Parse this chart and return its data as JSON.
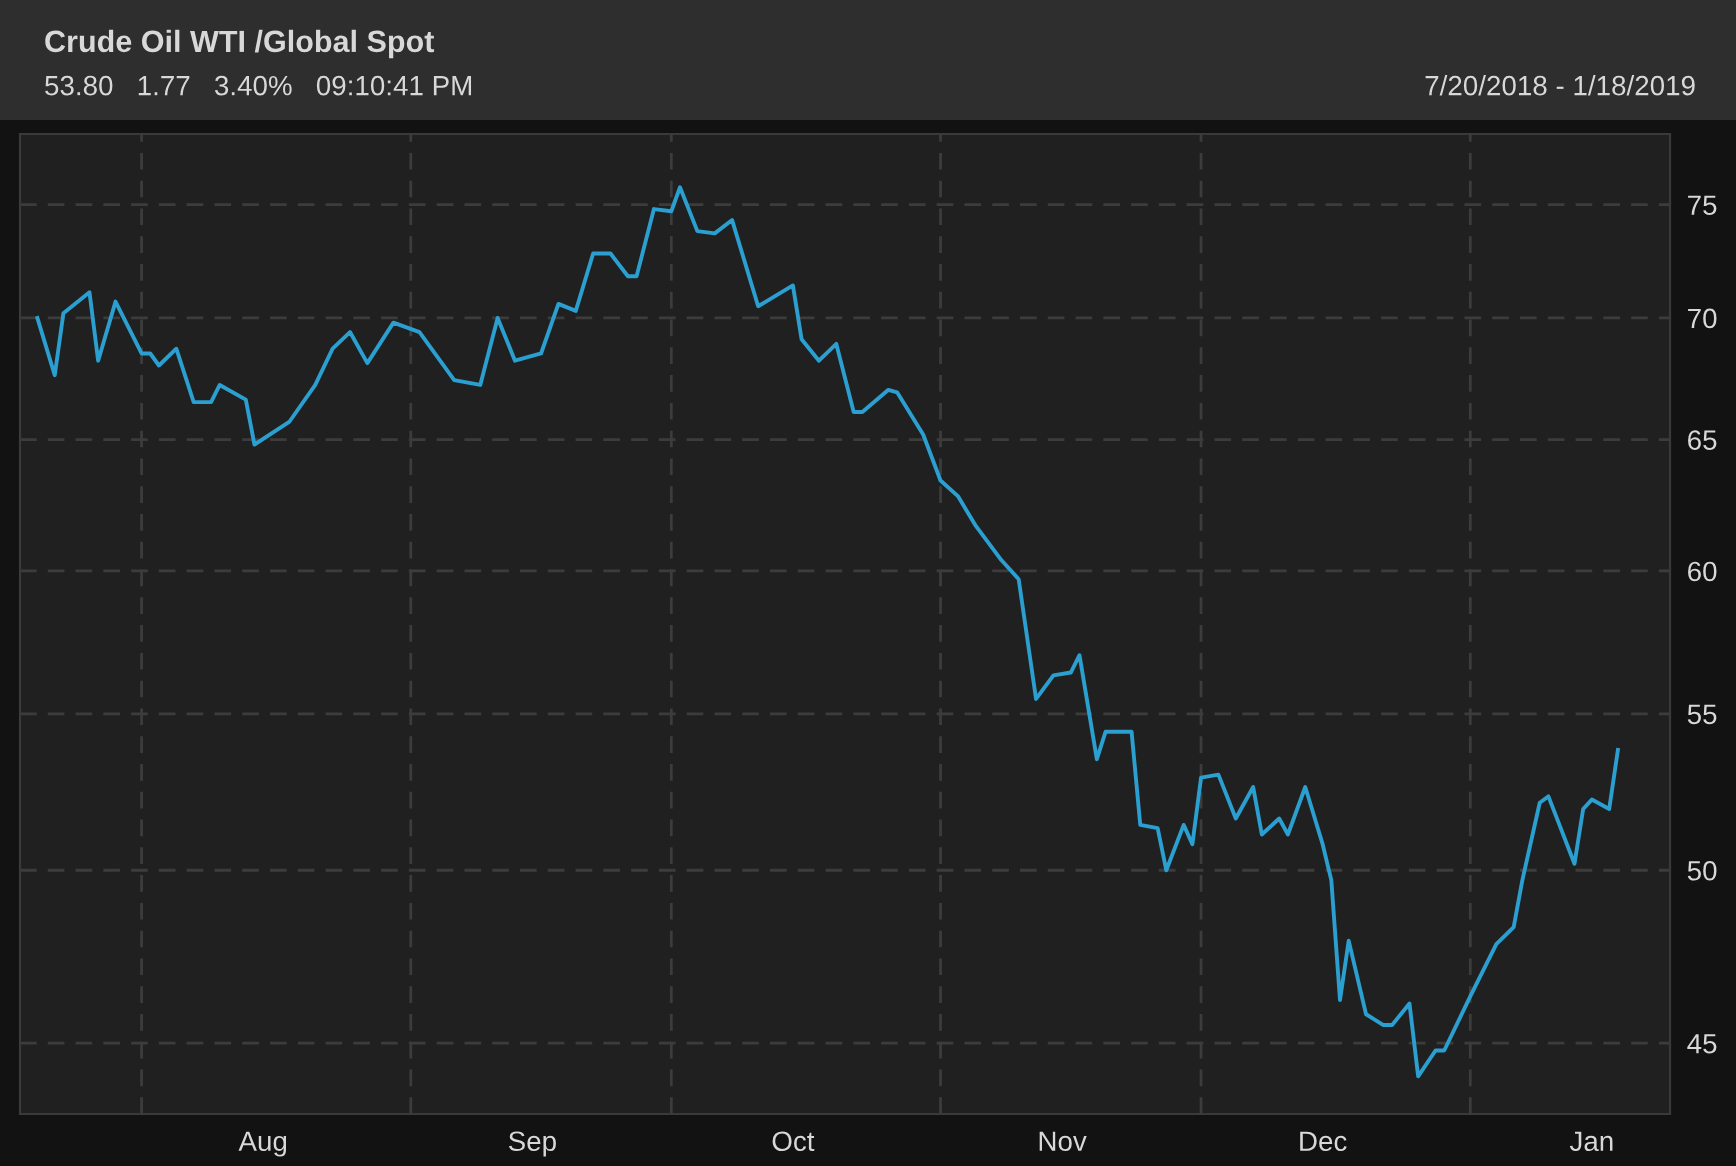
{
  "chart_data": {
    "type": "line",
    "title": "Crude Oil WTI /Global Spot",
    "subtitle": "53.80   1.77   3.40%   09:10:41 PM",
    "annotations": [
      "7/20/2018 - 1/18/2019"
    ],
    "x": [
      "2018-07-20",
      "2018-07-22",
      "2018-07-23",
      "2018-07-26",
      "2018-07-27",
      "2018-07-29",
      "2018-08-01",
      "2018-08-02",
      "2018-08-03",
      "2018-08-05",
      "2018-08-07",
      "2018-08-09",
      "2018-08-10",
      "2018-08-13",
      "2018-08-14",
      "2018-08-18",
      "2018-08-21",
      "2018-08-23",
      "2018-08-25",
      "2018-08-27",
      "2018-08-30",
      "2018-09-02",
      "2018-09-06",
      "2018-09-09",
      "2018-09-11",
      "2018-09-13",
      "2018-09-16",
      "2018-09-18",
      "2018-09-20",
      "2018-09-22",
      "2018-09-24",
      "2018-09-26",
      "2018-09-27",
      "2018-09-29",
      "2018-10-01",
      "2018-10-02",
      "2018-10-04",
      "2018-10-06",
      "2018-10-08",
      "2018-10-11",
      "2018-10-15",
      "2018-10-16",
      "2018-10-18",
      "2018-10-20",
      "2018-10-22",
      "2018-10-23",
      "2018-10-26",
      "2018-10-27",
      "2018-10-30",
      "2018-11-01",
      "2018-11-03",
      "2018-11-05",
      "2018-11-08",
      "2018-11-10",
      "2018-11-12",
      "2018-11-14",
      "2018-11-16",
      "2018-11-17",
      "2018-11-19",
      "2018-11-20",
      "2018-11-23",
      "2018-11-24",
      "2018-11-26",
      "2018-11-27",
      "2018-11-29",
      "2018-11-30",
      "2018-12-01",
      "2018-12-03",
      "2018-12-05",
      "2018-12-07",
      "2018-12-08",
      "2018-12-10",
      "2018-12-11",
      "2018-12-13",
      "2018-12-15",
      "2018-12-16",
      "2018-12-17",
      "2018-12-18",
      "2018-12-20",
      "2018-12-22",
      "2018-12-23",
      "2018-12-25",
      "2018-12-26",
      "2018-12-28",
      "2018-12-29",
      "2019-01-01",
      "2019-01-04",
      "2019-01-06",
      "2019-01-07",
      "2019-01-09",
      "2019-01-10",
      "2019-01-13",
      "2019-01-14",
      "2019-01-15",
      "2019-01-17",
      "2019-01-18"
    ],
    "series": [
      {
        "color": "#2a9fd0",
        "values": [
          70.0,
          67.6,
          70.2,
          71.1,
          68.2,
          70.7,
          68.5,
          68.5,
          68.0,
          68.7,
          66.5,
          66.5,
          67.2,
          66.6,
          64.8,
          65.7,
          67.2,
          68.7,
          69.4,
          68.1,
          69.8,
          69.4,
          67.4,
          67.2,
          70.0,
          68.2,
          68.5,
          70.6,
          70.3,
          72.8,
          72.8,
          71.8,
          71.8,
          74.8,
          74.7,
          75.8,
          73.8,
          73.7,
          74.3,
          70.5,
          71.4,
          69.1,
          68.2,
          68.9,
          66.1,
          66.1,
          67.0,
          66.9,
          65.2,
          63.4,
          62.8,
          61.7,
          60.4,
          59.7,
          55.5,
          56.3,
          56.4,
          57.0,
          53.5,
          54.4,
          54.4,
          51.4,
          51.3,
          50.0,
          51.4,
          50.8,
          52.9,
          53.0,
          51.6,
          52.6,
          51.1,
          51.6,
          51.1,
          52.6,
          50.8,
          49.7,
          46.2,
          47.9,
          45.8,
          45.5,
          45.5,
          46.1,
          44.1,
          44.8,
          44.8,
          46.3,
          47.8,
          48.3,
          49.7,
          52.1,
          52.3,
          50.2,
          51.9,
          52.2,
          51.9,
          53.8
        ]
      }
    ],
    "xlim": [
      "2018-07-18",
      "2019-01-24"
    ],
    "xticks": [
      {
        "value": "2018-08-01",
        "label": null
      },
      {
        "value": "2018-08-15",
        "label": "Aug"
      },
      {
        "value": "2018-09-01",
        "label": null
      },
      {
        "value": "2018-09-15",
        "label": "Sep"
      },
      {
        "value": "2018-10-01",
        "label": null
      },
      {
        "value": "2018-10-15",
        "label": "Oct"
      },
      {
        "value": "2018-11-01",
        "label": null
      },
      {
        "value": "2018-11-15",
        "label": "Nov"
      },
      {
        "value": "2018-12-01",
        "label": null
      },
      {
        "value": "2018-12-15",
        "label": "Dec"
      },
      {
        "value": "2019-01-01",
        "label": null
      },
      {
        "value": "2019-01-15",
        "label": "Jan"
      }
    ],
    "ylim": [
      43.1,
      78.3
    ],
    "yticks": [
      45,
      50,
      55,
      60,
      65,
      70,
      75
    ],
    "log": "y",
    "grid": true,
    "marker": "none",
    "line_style": "solid"
  }
}
